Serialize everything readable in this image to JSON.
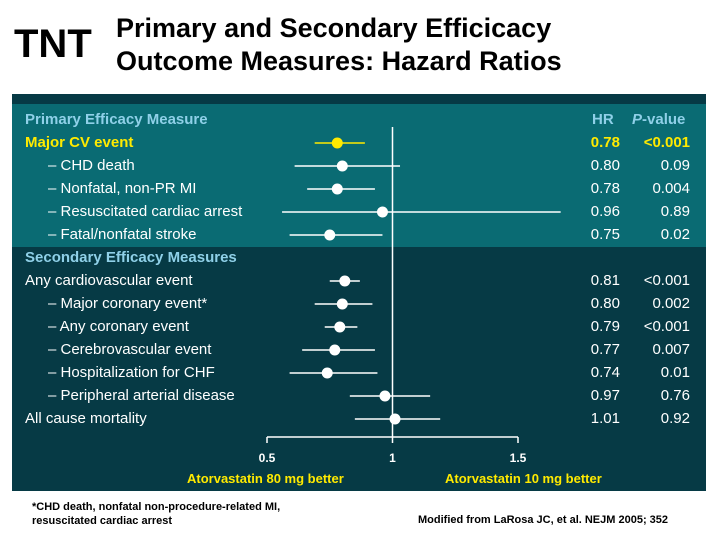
{
  "logo": "TNT",
  "title_line1": "Primary and Secondary Efficicacy",
  "title_line2": "Outcome Measures: Hazard Ratios",
  "headers": {
    "primary": "Primary Efficacy Measure",
    "secondary": "Secondary Efficacy Measures",
    "hr": "HR",
    "p_italic": "P",
    "p_rest": "-value"
  },
  "footnote_line1": "*CHD death, nonfatal non-procedure-related MI,",
  "footnote_line2": "resuscitated cardiac arrest",
  "source": "Modified from LaRosa JC, et al. NEJM 2005; 352",
  "colors": {
    "panel": "#063a45",
    "band": "#0a6b73",
    "highlight": "#ffea00",
    "header": "#8fd0e8",
    "group_left": "#ffea00",
    "group_right": "#ffea00"
  },
  "chart_data": {
    "type": "forest",
    "xlim": [
      0.5,
      1.5
    ],
    "xticks": [
      "0.5",
      "1",
      "1.5"
    ],
    "reference_line": 1,
    "left_label": "Atorvastatin 80 mg better",
    "right_label": "Atorvastatin 10 mg better",
    "rows": [
      {
        "label": "Major CV event",
        "hr": 0.78,
        "hr_text": "0.78",
        "p": "<0.001",
        "ci": [
          0.69,
          0.89
        ],
        "highlight": true,
        "indent": false
      },
      {
        "label": "– CHD death",
        "hr": 0.8,
        "hr_text": "0.80",
        "p": "0.09",
        "ci": [
          0.61,
          1.03
        ],
        "highlight": false,
        "indent": true
      },
      {
        "label": "– Nonfatal, non-PR MI",
        "hr": 0.78,
        "hr_text": "0.78",
        "p": "0.004",
        "ci": [
          0.66,
          0.93
        ],
        "highlight": false,
        "indent": true
      },
      {
        "label": "– Resuscitated cardiac arrest",
        "hr": 0.96,
        "hr_text": "0.96",
        "p": "0.89",
        "ci": [
          0.56,
          1.67
        ],
        "highlight": false,
        "indent": true
      },
      {
        "label": "– Fatal/nonfatal stroke",
        "hr": 0.75,
        "hr_text": "0.75",
        "p": "0.02",
        "ci": [
          0.59,
          0.96
        ],
        "highlight": false,
        "indent": true
      },
      {
        "label": "Any cardiovascular event",
        "hr": 0.81,
        "hr_text": "0.81",
        "p": "<0.001",
        "ci": [
          0.75,
          0.87
        ],
        "highlight": false,
        "indent": false
      },
      {
        "label": "– Major coronary event*",
        "hr": 0.8,
        "hr_text": "0.80",
        "p": "0.002",
        "ci": [
          0.69,
          0.92
        ],
        "highlight": false,
        "indent": true
      },
      {
        "label": "– Any coronary event",
        "hr": 0.79,
        "hr_text": "0.79",
        "p": "<0.001",
        "ci": [
          0.73,
          0.86
        ],
        "highlight": false,
        "indent": true
      },
      {
        "label": "– Cerebrovascular event",
        "hr": 0.77,
        "hr_text": "0.77",
        "p": "0.007",
        "ci": [
          0.64,
          0.93
        ],
        "highlight": false,
        "indent": true
      },
      {
        "label": "– Hospitalization for CHF",
        "hr": 0.74,
        "hr_text": "0.74",
        "p": "0.01",
        "ci": [
          0.59,
          0.94
        ],
        "highlight": false,
        "indent": true
      },
      {
        "label": "– Peripheral arterial disease",
        "hr": 0.97,
        "hr_text": "0.97",
        "p": "0.76",
        "ci": [
          0.83,
          1.15
        ],
        "highlight": false,
        "indent": true
      },
      {
        "label": "All cause mortality",
        "hr": 1.01,
        "hr_text": "1.01",
        "p": "0.92",
        "ci": [
          0.85,
          1.19
        ],
        "highlight": false,
        "indent": false
      }
    ]
  }
}
